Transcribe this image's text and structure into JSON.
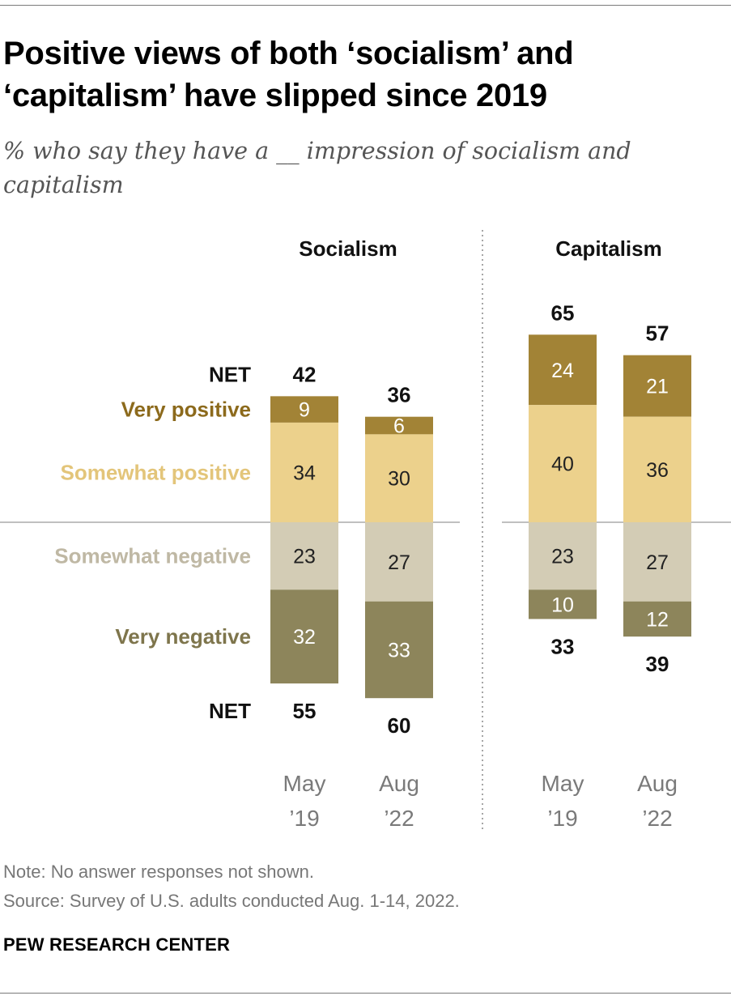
{
  "title": "Positive views of both ‘socialism’ and ‘capitalism’ have slipped since 2019",
  "subtitle": "% who say they have a __ impression of socialism and capitalism",
  "note": "Note: No answer responses not shown.",
  "source": "Source: Survey of U.S. adults conducted Aug. 1-14, 2022.",
  "brand": "PEW RESEARCH CENTER",
  "colors": {
    "very_positive": "#a28336",
    "somewhat_positive": "#ecd18c",
    "somewhat_negative": "#d3ccb5",
    "very_negative": "#8d855b",
    "very_positive_label": "#8c6a1c",
    "somewhat_positive_label": "#e3c57a",
    "somewhat_negative_label": "#bfb8a4",
    "very_negative_label": "#7e754c"
  },
  "chart_data": {
    "type": "bar",
    "stacked": "diverging",
    "net_label": "NET",
    "panels": [
      {
        "name": "Socialism",
        "categories": [
          "May\n’19",
          "Aug\n’22"
        ],
        "series": [
          {
            "name": "Very positive",
            "values": [
              9,
              6
            ]
          },
          {
            "name": "Somewhat positive",
            "values": [
              34,
              30
            ]
          },
          {
            "name": "Somewhat negative",
            "values": [
              23,
              27
            ]
          },
          {
            "name": "Very negative",
            "values": [
              32,
              33
            ]
          }
        ],
        "net_positive": [
          42,
          36
        ],
        "net_negative": [
          55,
          60
        ]
      },
      {
        "name": "Capitalism",
        "categories": [
          "May\n’19",
          "Aug\n’22"
        ],
        "series": [
          {
            "name": "Very positive",
            "values": [
              24,
              21
            ]
          },
          {
            "name": "Somewhat positive",
            "values": [
              40,
              36
            ]
          },
          {
            "name": "Somewhat negative",
            "values": [
              23,
              27
            ]
          },
          {
            "name": "Very negative",
            "values": [
              10,
              12
            ]
          }
        ],
        "net_positive": [
          65,
          57
        ],
        "net_negative": [
          33,
          39
        ]
      }
    ]
  }
}
